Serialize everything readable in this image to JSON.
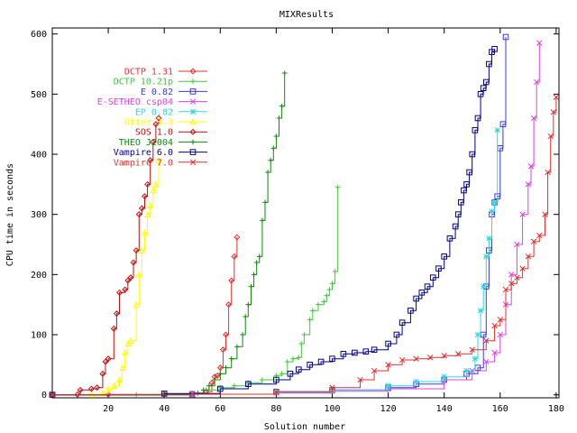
{
  "chart_data": {
    "type": "line",
    "title": "MIXResults",
    "xlabel": "Solution number",
    "ylabel": "CPU time in seconds",
    "xlim": [
      0,
      181
    ],
    "ylim": [
      -5,
      610
    ],
    "xticks": [
      20,
      40,
      60,
      80,
      100,
      120,
      140,
      160,
      180
    ],
    "yticks": [
      0,
      100,
      200,
      300,
      400,
      500,
      600
    ],
    "grid": false,
    "legend_position": "top-left",
    "series": [
      {
        "name": "DCTP 1.31",
        "color": "#e8302c",
        "marker": "diamond",
        "points": [
          [
            0,
            0
          ],
          [
            20,
            0.5
          ],
          [
            40,
            1
          ],
          [
            50,
            2
          ],
          [
            55,
            5
          ],
          [
            57,
            20
          ],
          [
            58,
            30
          ],
          [
            59,
            32
          ],
          [
            60,
            45
          ],
          [
            61,
            75
          ],
          [
            62,
            100
          ],
          [
            63,
            150
          ],
          [
            64,
            190
          ],
          [
            65,
            230
          ],
          [
            66,
            262
          ]
        ]
      },
      {
        "name": "DCTP 10.21p",
        "color": "#3ec83a",
        "marker": "plus",
        "points": [
          [
            0,
            0
          ],
          [
            30,
            0.5
          ],
          [
            50,
            2
          ],
          [
            55,
            8
          ],
          [
            60,
            12
          ],
          [
            65,
            15
          ],
          [
            70,
            20
          ],
          [
            75,
            25
          ],
          [
            80,
            32
          ],
          [
            82,
            35
          ],
          [
            84,
            55
          ],
          [
            86,
            60
          ],
          [
            88,
            62
          ],
          [
            89,
            85
          ],
          [
            90,
            100
          ],
          [
            92,
            125
          ],
          [
            93,
            140
          ],
          [
            95,
            150
          ],
          [
            97,
            155
          ],
          [
            98,
            165
          ],
          [
            99,
            175
          ],
          [
            100,
            185
          ],
          [
            101,
            205
          ],
          [
            102,
            345
          ]
        ]
      },
      {
        "name": "E 0.82",
        "color": "#3a3ae8",
        "marker": "square",
        "points": [
          [
            0,
            0
          ],
          [
            50,
            1
          ],
          [
            80,
            5
          ],
          [
            100,
            8
          ],
          [
            120,
            12
          ],
          [
            130,
            18
          ],
          [
            140,
            25
          ],
          [
            148,
            35
          ],
          [
            152,
            45
          ],
          [
            154,
            100
          ],
          [
            155,
            180
          ],
          [
            156,
            240
          ],
          [
            157,
            300
          ],
          [
            158,
            320
          ],
          [
            159,
            330
          ],
          [
            160,
            410
          ],
          [
            161,
            450
          ],
          [
            162,
            595
          ]
        ]
      },
      {
        "name": "E-SETHEO csp04",
        "color": "#e040e0",
        "marker": "x",
        "points": [
          [
            0,
            0
          ],
          [
            50,
            1
          ],
          [
            80,
            3
          ],
          [
            100,
            6
          ],
          [
            120,
            10
          ],
          [
            140,
            25
          ],
          [
            150,
            40
          ],
          [
            155,
            55
          ],
          [
            158,
            70
          ],
          [
            160,
            100
          ],
          [
            162,
            150
          ],
          [
            164,
            200
          ],
          [
            166,
            250
          ],
          [
            168,
            300
          ],
          [
            170,
            350
          ],
          [
            171,
            380
          ],
          [
            172,
            460
          ],
          [
            173,
            520
          ],
          [
            174,
            585
          ]
        ]
      },
      {
        "name": "EP 0.82",
        "color": "#30d8e0",
        "marker": "star",
        "points": [
          [
            0,
            0
          ],
          [
            50,
            1
          ],
          [
            80,
            4
          ],
          [
            100,
            8
          ],
          [
            120,
            15
          ],
          [
            130,
            22
          ],
          [
            140,
            30
          ],
          [
            148,
            40
          ],
          [
            151,
            60
          ],
          [
            152,
            100
          ],
          [
            153,
            140
          ],
          [
            154,
            180
          ],
          [
            155,
            230
          ],
          [
            156,
            260
          ],
          [
            157,
            305
          ],
          [
            158,
            320
          ],
          [
            159,
            440
          ]
        ]
      },
      {
        "name": "Otter 3.3",
        "color": "#ffff00",
        "marker": "triangle",
        "points": [
          [
            0,
            0
          ],
          [
            14,
            0.5
          ],
          [
            18,
            3
          ],
          [
            20,
            10
          ],
          [
            22,
            15
          ],
          [
            24,
            25
          ],
          [
            25,
            45
          ],
          [
            26,
            70
          ],
          [
            27,
            85
          ],
          [
            28,
            90
          ],
          [
            30,
            150
          ],
          [
            31,
            200
          ],
          [
            32,
            240
          ],
          [
            33,
            270
          ],
          [
            34,
            300
          ],
          [
            35,
            315
          ],
          [
            36,
            340
          ],
          [
            37,
            350
          ],
          [
            38,
            390
          ]
        ]
      },
      {
        "name": "SOS 1.0",
        "color": "#c01010",
        "marker": "diamond",
        "points": [
          [
            0,
            0
          ],
          [
            9,
            0.5
          ],
          [
            10,
            8
          ],
          [
            14,
            10
          ],
          [
            16,
            12
          ],
          [
            18,
            35
          ],
          [
            19,
            55
          ],
          [
            20,
            60
          ],
          [
            22,
            110
          ],
          [
            23,
            135
          ],
          [
            24,
            170
          ],
          [
            26,
            175
          ],
          [
            27,
            190
          ],
          [
            28,
            195
          ],
          [
            29,
            220
          ],
          [
            30,
            240
          ],
          [
            31,
            300
          ],
          [
            32,
            310
          ],
          [
            33,
            330
          ],
          [
            34,
            350
          ],
          [
            35,
            390
          ],
          [
            36,
            420
          ],
          [
            37,
            450
          ],
          [
            38,
            460
          ]
        ]
      },
      {
        "name": "THEO J2004",
        "color": "#108810",
        "marker": "plus",
        "points": [
          [
            0,
            0
          ],
          [
            40,
            1
          ],
          [
            52,
            3
          ],
          [
            54,
            8
          ],
          [
            56,
            15
          ],
          [
            58,
            25
          ],
          [
            60,
            35
          ],
          [
            62,
            45
          ],
          [
            64,
            60
          ],
          [
            66,
            80
          ],
          [
            68,
            100
          ],
          [
            69,
            130
          ],
          [
            70,
            150
          ],
          [
            71,
            180
          ],
          [
            72,
            200
          ],
          [
            73,
            220
          ],
          [
            74,
            230
          ],
          [
            75,
            290
          ],
          [
            76,
            320
          ],
          [
            77,
            370
          ],
          [
            78,
            390
          ],
          [
            79,
            410
          ],
          [
            80,
            430
          ],
          [
            81,
            460
          ],
          [
            82,
            480
          ],
          [
            83,
            535
          ]
        ]
      },
      {
        "name": "Vampire 6.0",
        "color": "#00008a",
        "marker": "square",
        "points": [
          [
            0,
            0
          ],
          [
            40,
            2
          ],
          [
            60,
            10
          ],
          [
            70,
            18
          ],
          [
            80,
            25
          ],
          [
            85,
            35
          ],
          [
            88,
            42
          ],
          [
            92,
            50
          ],
          [
            96,
            55
          ],
          [
            100,
            60
          ],
          [
            104,
            68
          ],
          [
            108,
            70
          ],
          [
            112,
            72
          ],
          [
            115,
            75
          ],
          [
            120,
            85
          ],
          [
            123,
            100
          ],
          [
            125,
            120
          ],
          [
            128,
            140
          ],
          [
            130,
            160
          ],
          [
            132,
            170
          ],
          [
            134,
            180
          ],
          [
            136,
            195
          ],
          [
            138,
            210
          ],
          [
            140,
            230
          ],
          [
            142,
            260
          ],
          [
            144,
            280
          ],
          [
            145,
            300
          ],
          [
            146,
            320
          ],
          [
            147,
            340
          ],
          [
            148,
            350
          ],
          [
            149,
            370
          ],
          [
            150,
            400
          ],
          [
            151,
            440
          ],
          [
            152,
            460
          ],
          [
            153,
            500
          ],
          [
            154,
            510
          ],
          [
            155,
            520
          ],
          [
            156,
            550
          ],
          [
            157,
            570
          ],
          [
            158,
            575
          ]
        ]
      },
      {
        "name": "Vampire 7.0",
        "color": "#e03030",
        "marker": "x",
        "points": [
          [
            0,
            0
          ],
          [
            50,
            1
          ],
          [
            80,
            5
          ],
          [
            100,
            12
          ],
          [
            110,
            25
          ],
          [
            115,
            40
          ],
          [
            120,
            50
          ],
          [
            125,
            58
          ],
          [
            130,
            60
          ],
          [
            135,
            62
          ],
          [
            140,
            65
          ],
          [
            145,
            68
          ],
          [
            150,
            75
          ],
          [
            155,
            90
          ],
          [
            158,
            115
          ],
          [
            160,
            125
          ],
          [
            162,
            175
          ],
          [
            164,
            185
          ],
          [
            166,
            195
          ],
          [
            168,
            210
          ],
          [
            170,
            230
          ],
          [
            172,
            255
          ],
          [
            174,
            265
          ],
          [
            176,
            300
          ],
          [
            177,
            370
          ],
          [
            178,
            430
          ],
          [
            179,
            470
          ],
          [
            180,
            495
          ]
        ]
      }
    ]
  }
}
